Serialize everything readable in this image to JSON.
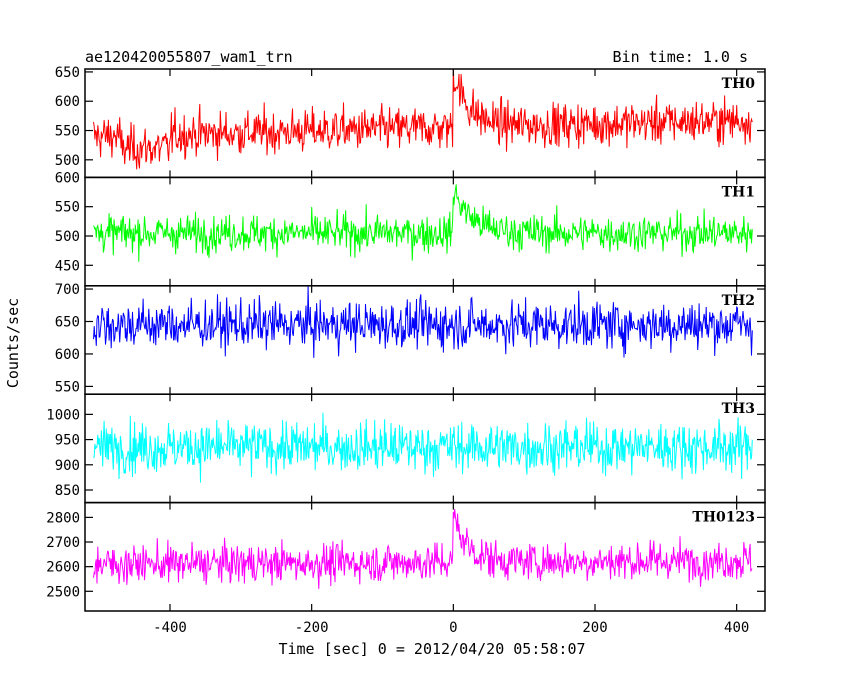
{
  "chart_data": {
    "type": "line",
    "title": "ae120420055807_wam1_trn",
    "bin_time_label": "Bin time: 1.0 s",
    "xlabel": "Time [sec] 0 = 2012/04/20 05:58:07",
    "ylabel": "Counts/sec",
    "xlim": [
      -520,
      440
    ],
    "data_x_range": [
      -508,
      422
    ],
    "x_ticks": [
      -400,
      -200,
      0,
      200,
      400
    ],
    "grid": false,
    "panels": [
      {
        "name": "TH0",
        "color": "#ff0000",
        "ylim": [
          470,
          655
        ],
        "y_ticks": [
          500,
          550,
          600,
          650
        ],
        "mean": 540,
        "sigma": 26,
        "trend_end": 568,
        "burst_peak": 635,
        "burst_decay": 22,
        "early_dip": [
          -470,
          -400,
          520
        ]
      },
      {
        "name": "TH1",
        "color": "#00ff00",
        "ylim": [
          415,
          600
        ],
        "y_ticks": [
          450,
          500,
          550,
          600
        ],
        "mean": 505,
        "sigma": 22,
        "trend_end": 505,
        "burst_peak": 580,
        "burst_decay": 25
      },
      {
        "name": "TH2",
        "color": "#0000ff",
        "ylim": [
          538,
          705
        ],
        "y_ticks": [
          550,
          600,
          650,
          700
        ],
        "mean": 645,
        "sigma": 26,
        "trend_end": 645,
        "burst_peak": 645,
        "burst_decay": 1
      },
      {
        "name": "TH3",
        "color": "#00ffff",
        "ylim": [
          825,
          1040
        ],
        "y_ticks": [
          850,
          900,
          950,
          1000
        ],
        "mean": 935,
        "sigma": 35,
        "trend_end": 935,
        "burst_peak": 935,
        "burst_decay": 1
      },
      {
        "name": "TH0123",
        "color": "#ff00ff",
        "ylim": [
          2420,
          2860
        ],
        "y_ticks": [
          2500,
          2600,
          2700,
          2800
        ],
        "mean": 2610,
        "sigma": 55,
        "trend_end": 2625,
        "burst_peak": 2800,
        "burst_decay": 20
      }
    ]
  }
}
